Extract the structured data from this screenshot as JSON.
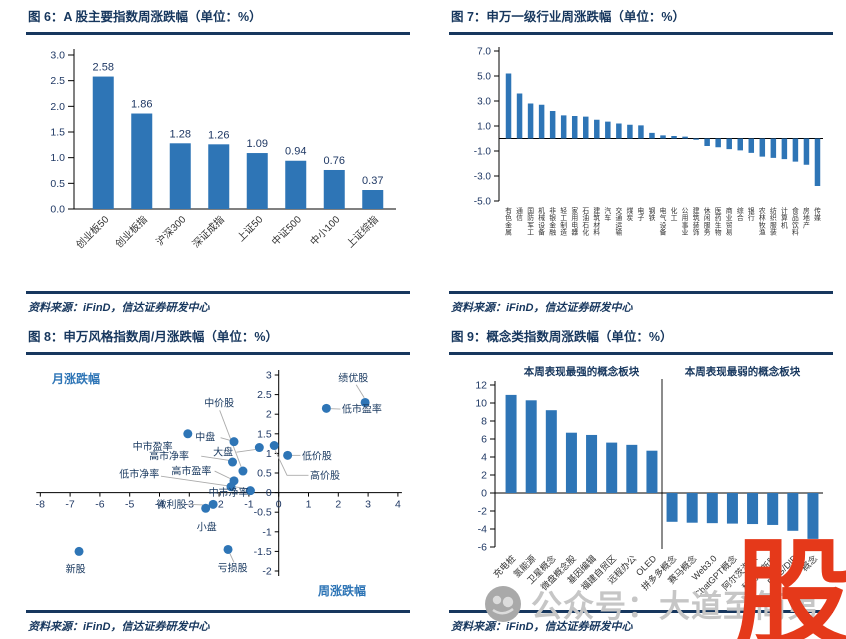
{
  "colors": {
    "navy": "#17375E",
    "tick_navy": "#1F3864",
    "bar_blue": "#2E75B6",
    "category_text": "#333333",
    "leader_gray": "#ABABAB",
    "watermark_gray": "#C6C6C6",
    "watermark_red": "#E5391A",
    "axis_black": "#000000"
  },
  "panels": [
    {
      "key": "fig6",
      "title": "图 6：A 股主要指数周涨跌幅（单位：%）",
      "source": "资料来源：iFinD，信达证券研发中心"
    },
    {
      "key": "fig7",
      "title": "图 7：申万一级行业周涨跌幅（单位：%）",
      "source": "资料来源：iFinD，信达证券研发中心"
    },
    {
      "key": "fig8",
      "title": "图 8：申万风格指数周/月涨跌幅（单位：%）",
      "source": "资料来源：iFinD，信达证券研发中心"
    },
    {
      "key": "fig9",
      "title": "图 9：概念类指数周涨跌幅（单位：%）",
      "source": "资料来源：iFinD，信达证券研发中心"
    }
  ],
  "chart_data": [
    {
      "id": "fig6",
      "type": "bar",
      "title": "A股主要指数周涨跌幅（单位：%）",
      "categories": [
        "创业板50",
        "创业板指",
        "沪深300",
        "深证成指",
        "上证50",
        "中证500",
        "中小100",
        "上证综指"
      ],
      "values": [
        2.58,
        1.86,
        1.28,
        1.26,
        1.09,
        0.94,
        0.76,
        0.37
      ],
      "value_labels": [
        "2.58",
        "1.86",
        "1.28",
        "1.26",
        "1.09",
        "0.94",
        "0.76",
        "0.37"
      ],
      "yticks": [
        "3.0",
        "2.5",
        "2.0",
        "1.5",
        "1.0",
        "0.5",
        "0.0"
      ],
      "ylim": [
        0,
        3
      ],
      "grid": false,
      "legend": "none"
    },
    {
      "id": "fig7",
      "type": "bar",
      "title": "申万一级行业周涨跌幅（单位：%）",
      "categories": [
        "有色金属",
        "通信",
        "国防军工",
        "机械设备",
        "非银金融",
        "轻工制造",
        "家用电器",
        "石油石化",
        "建筑材料",
        "汽车",
        "交通运输",
        "煤炭",
        "电子",
        "钢铁",
        "电气设备",
        "化工",
        "公用事业",
        "建筑装饰",
        "休闲服务",
        "医药生物",
        "商业贸易",
        "综合",
        "银行",
        "农林牧渔",
        "纺织服装",
        "计算机",
        "食品饮料",
        "房地产",
        "传媒"
      ],
      "values": [
        5.2,
        3.6,
        2.8,
        2.7,
        2.2,
        1.85,
        1.8,
        1.75,
        1.5,
        1.35,
        1.2,
        1.1,
        1.05,
        0.45,
        0.25,
        0.2,
        0.15,
        -0.1,
        -0.6,
        -0.7,
        -0.85,
        -0.95,
        -1.15,
        -1.45,
        -1.55,
        -1.65,
        -1.85,
        -2.1,
        -3.8
      ],
      "yticks": [
        "7.0",
        "5.0",
        "3.0",
        "1.0",
        "-1.0",
        "-3.0",
        "-5.0"
      ],
      "ylim": [
        -5,
        7
      ],
      "grid": false,
      "legend": "none"
    },
    {
      "id": "fig8",
      "type": "scatter",
      "title": "申万风格指数周/月涨跌幅（单位：%）",
      "xlabel": "周涨跌幅",
      "ylabel": "月涨跌幅",
      "xlim": [
        -8,
        4
      ],
      "ylim": [
        -2,
        3
      ],
      "xticks": [
        "-8",
        "-7",
        "-6",
        "-5",
        "-4",
        "-3",
        "-2",
        "-1",
        "0",
        "1",
        "2",
        "3",
        "4"
      ],
      "yticks": [
        "3",
        "2.5",
        "2",
        "1.5",
        "1",
        "0.5",
        "0",
        "-0.5",
        "-1",
        "-1.5",
        "-2"
      ],
      "points": [
        {
          "label": "绩优股",
          "x": 2.9,
          "y": 2.3,
          "lx": 2.0,
          "ly": 2.92,
          "leader": [
            [
              2.6,
              2.75
            ],
            [
              2.87,
              2.42
            ]
          ]
        },
        {
          "label": "低市盈率",
          "x": 1.6,
          "y": 2.15,
          "lx": 2.12,
          "ly": 2.13,
          "leader": [
            [
              2.07,
              2.13
            ],
            [
              1.75,
              2.14
            ]
          ]
        },
        {
          "label": "中市盈率",
          "x": -3.05,
          "y": 1.5,
          "lx": -4.9,
          "ly": 1.18,
          "leader": null
        },
        {
          "label": "中盘",
          "x": -1.5,
          "y": 1.3,
          "lx": -2.8,
          "ly": 1.42,
          "leader": [
            [
              -1.95,
              1.4
            ],
            [
              -1.62,
              1.33
            ]
          ]
        },
        {
          "label": "高价股",
          "x": -0.15,
          "y": 1.2,
          "lx": 1.05,
          "ly": 0.44,
          "leader": [
            [
              1.0,
              0.44
            ],
            [
              0.28,
              0.44
            ],
            [
              -0.12,
              1.08
            ]
          ]
        },
        {
          "label": "大盘",
          "x": -0.65,
          "y": 1.15,
          "lx": -2.2,
          "ly": 1.03,
          "leader": [
            [
              -1.42,
              1.03
            ],
            [
              -0.78,
              1.1
            ]
          ]
        },
        {
          "label": "低价股",
          "x": 0.3,
          "y": 0.95,
          "lx": 0.78,
          "ly": 0.93,
          "leader": [
            [
              0.73,
              0.95
            ],
            [
              0.42,
              0.95
            ]
          ]
        },
        {
          "label": "高市净率",
          "x": -1.55,
          "y": 0.78,
          "lx": -4.35,
          "ly": 0.93,
          "leader": [
            [
              -2.6,
              0.93
            ],
            [
              -1.65,
              0.82
            ]
          ]
        },
        {
          "label": "中价股",
          "x": -1.2,
          "y": 0.55,
          "lx": -2.5,
          "ly": 2.28,
          "leader": [
            [
              -1.98,
              2.1
            ],
            [
              -1.26,
              0.66
            ]
          ]
        },
        {
          "label": "高市盈率",
          "x": -1.5,
          "y": 0.3,
          "lx": -3.6,
          "ly": 0.55,
          "leader": [
            [
              -2.15,
              0.55
            ],
            [
              -1.58,
              0.34
            ]
          ]
        },
        {
          "label": "中市净率",
          "x": -1.6,
          "y": 0.15,
          "lx": -2.35,
          "ly": 0.0,
          "leader": null
        },
        {
          "label": "低市净率",
          "x": -0.95,
          "y": 0.05,
          "lx": -5.35,
          "ly": 0.48,
          "leader": [
            [
              -3.95,
              0.42
            ],
            [
              -1.05,
              0.1
            ]
          ]
        },
        {
          "label": "微利股",
          "x": -2.2,
          "y": -0.3,
          "lx": -4.1,
          "ly": -0.3,
          "leader": [
            [
              -3.05,
              -0.3
            ],
            [
              -2.32,
              -0.32
            ]
          ]
        },
        {
          "label": "小盘",
          "x": -2.45,
          "y": -0.4,
          "lx": -2.75,
          "ly": -0.88,
          "leader": null
        },
        {
          "label": "亏损股",
          "x": -1.7,
          "y": -1.45,
          "lx": -2.05,
          "ly": -1.92,
          "leader": [
            [
              -1.5,
              -1.78
            ],
            [
              -1.66,
              -1.52
            ]
          ]
        },
        {
          "label": "新股",
          "x": -6.7,
          "y": -1.5,
          "lx": -7.15,
          "ly": -1.95,
          "leader": null
        }
      ],
      "grid": false,
      "legend": "none"
    },
    {
      "id": "fig9",
      "type": "bar",
      "title": "概念类指数周涨跌幅（单位：%）",
      "ylim": [
        -6,
        12
      ],
      "yticks": [
        "12",
        "10",
        "8",
        "6",
        "4",
        "2",
        "0",
        "-2",
        "-4",
        "-6"
      ],
      "grid": false,
      "legend": "none",
      "sections": [
        {
          "title": "本周表现最强的概念板块",
          "categories": [
            "充电桩",
            "氢能源",
            "卫星概念",
            "微盘概念股",
            "基因编辑",
            "福建自贸区",
            "远程办公",
            "OLED"
          ],
          "values": [
            10.9,
            10.3,
            9.2,
            6.7,
            6.45,
            5.6,
            5.35,
            4.7
          ]
        },
        {
          "title": "本周表现最弱的概念板块",
          "categories": [
            "拼多多概念",
            "赛马概念",
            "Web3.0",
            "ChatGPT概念",
            "阿尔茨海默",
            "科创次新股",
            "DRG/DIP",
            "概念"
          ],
          "values": [
            -3.2,
            -3.3,
            -3.35,
            -3.4,
            -3.45,
            -3.55,
            -4.2,
            -5.1
          ]
        }
      ]
    }
  ],
  "watermark": {
    "wechat_text": "公众号：大道至简第",
    "red_glyph": "股"
  }
}
